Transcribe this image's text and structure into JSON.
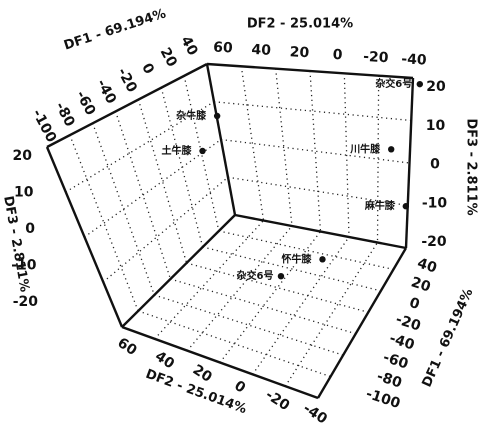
{
  "chart_data": {
    "type": "scatter",
    "title": "",
    "projection": "3d-box",
    "grid": true,
    "axes": {
      "df1": {
        "label": "DF1 - 69.194%",
        "ticks": [
          "-100",
          "-80",
          "-60",
          "-40",
          "-20",
          "0",
          "20",
          "40"
        ]
      },
      "df2": {
        "label": "DF2 - 25.014%",
        "ticks": [
          "60",
          "40",
          "20",
          "0",
          "-20",
          "-40"
        ]
      },
      "df3": {
        "label": "DF3 - 2.811%",
        "ticks": [
          "20",
          "10",
          "0",
          "-10",
          "-20"
        ]
      },
      "df3_left": {
        "label": "DF3 - 2.811%",
        "ticks": [
          "20",
          "10",
          "0",
          "-10",
          "-20"
        ]
      },
      "df1_right": {
        "label": "DF1 - 69.194%",
        "ticks": [
          "40",
          "20",
          "0",
          "-20",
          "-40",
          "-60",
          "-80",
          "-100"
        ]
      },
      "df2_bottom": {
        "label": "DF2 - 25.014%",
        "ticks": [
          "60",
          "40",
          "20",
          "0",
          "-20",
          "-40"
        ]
      }
    },
    "series": [
      {
        "projection": "DF2-DF3 plane (back wall)",
        "points": [
          {
            "label": "杂交6号",
            "x": -30,
            "y": 18
          },
          {
            "label": "川牛膝",
            "x": -10,
            "y": 0
          },
          {
            "label": "麻牛膝",
            "x": -12,
            "y": -15
          }
        ]
      },
      {
        "projection": "DF1-DF3 plane (left wall)",
        "points": [
          {
            "label": "杂牛膝",
            "x": 13,
            "y": 12
          },
          {
            "label": "土牛膝",
            "x": -8,
            "y": 7
          }
        ]
      },
      {
        "projection": "DF1-DF2 plane (floor)",
        "points": [
          {
            "label": "怀牛膝",
            "x": 8,
            "y": 6
          },
          {
            "label": "杂交6号",
            "x": 20,
            "y": -20
          }
        ]
      }
    ]
  }
}
